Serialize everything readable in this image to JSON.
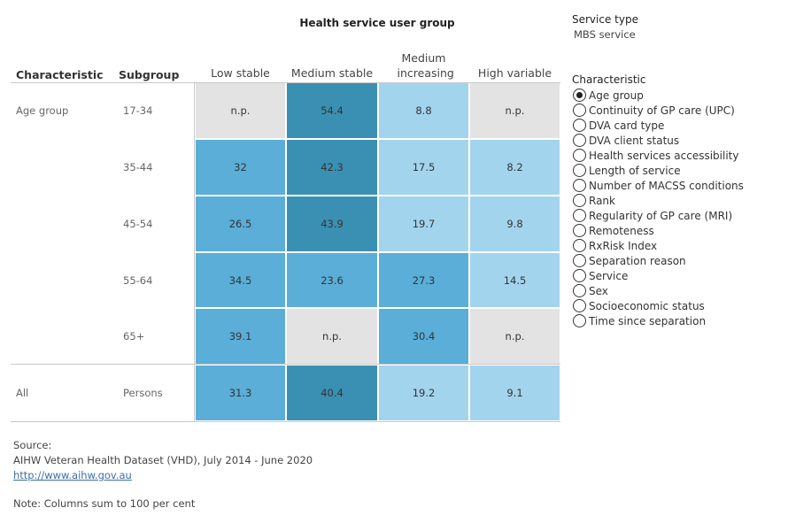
{
  "chart_data": {
    "type": "heatmap",
    "title": "Health service user group",
    "row_headers": {
      "characteristic": "Characteristic",
      "subgroup": "Subgroup"
    },
    "columns": [
      "Low stable",
      "Medium stable",
      "Medium increasing",
      "High variable"
    ],
    "rows": [
      {
        "characteristic": "Age group",
        "subgroup": "17-34",
        "values": [
          "n.p.",
          "54.4",
          "8.8",
          "n.p."
        ]
      },
      {
        "characteristic": "",
        "subgroup": "35-44",
        "values": [
          "32",
          "42.3",
          "17.5",
          "8.2"
        ]
      },
      {
        "characteristic": "",
        "subgroup": "45-54",
        "values": [
          "26.5",
          "43.9",
          "19.7",
          "9.8"
        ]
      },
      {
        "characteristic": "",
        "subgroup": "55-64",
        "values": [
          "34.5",
          "23.6",
          "27.3",
          "14.5"
        ]
      },
      {
        "characteristic": "",
        "subgroup": "65+",
        "values": [
          "39.1",
          "n.p.",
          "30.4",
          "n.p."
        ]
      },
      {
        "characteristic": "All",
        "subgroup": "Persons",
        "values": [
          "31.3",
          "40.4",
          "19.2",
          "9.1"
        ]
      }
    ],
    "color_scale": {
      "np": "#e3e3e3",
      "bins": [
        {
          "max": 20,
          "color": "#a3d4ee"
        },
        {
          "max": 40,
          "color": "#5aaed8"
        },
        {
          "max": 100,
          "color": "#3a90b2"
        }
      ]
    }
  },
  "service_type": {
    "label": "Service type",
    "value": "MBS service"
  },
  "characteristic_filter": {
    "label": "Characteristic",
    "selected_index": 0,
    "options": [
      "Age group",
      "Continuity of GP care (UPC)",
      "DVA card type",
      "DVA client status",
      "Health services accessibility",
      "Length of service",
      "Number of MACSS conditions",
      "Rank",
      "Regularity of GP care (MRI)",
      "Remoteness",
      "RxRisk Index",
      "Separation reason",
      "Service",
      "Sex",
      "Socioeconomic status",
      "Time since separation"
    ]
  },
  "footer": {
    "source_label": "Source:",
    "source_text": "AIHW Veteran Health Dataset (VHD), July 2014 - June 2020",
    "link": "http://www.aihw.gov.au",
    "note": "Note: Columns sum to 100 per cent"
  }
}
